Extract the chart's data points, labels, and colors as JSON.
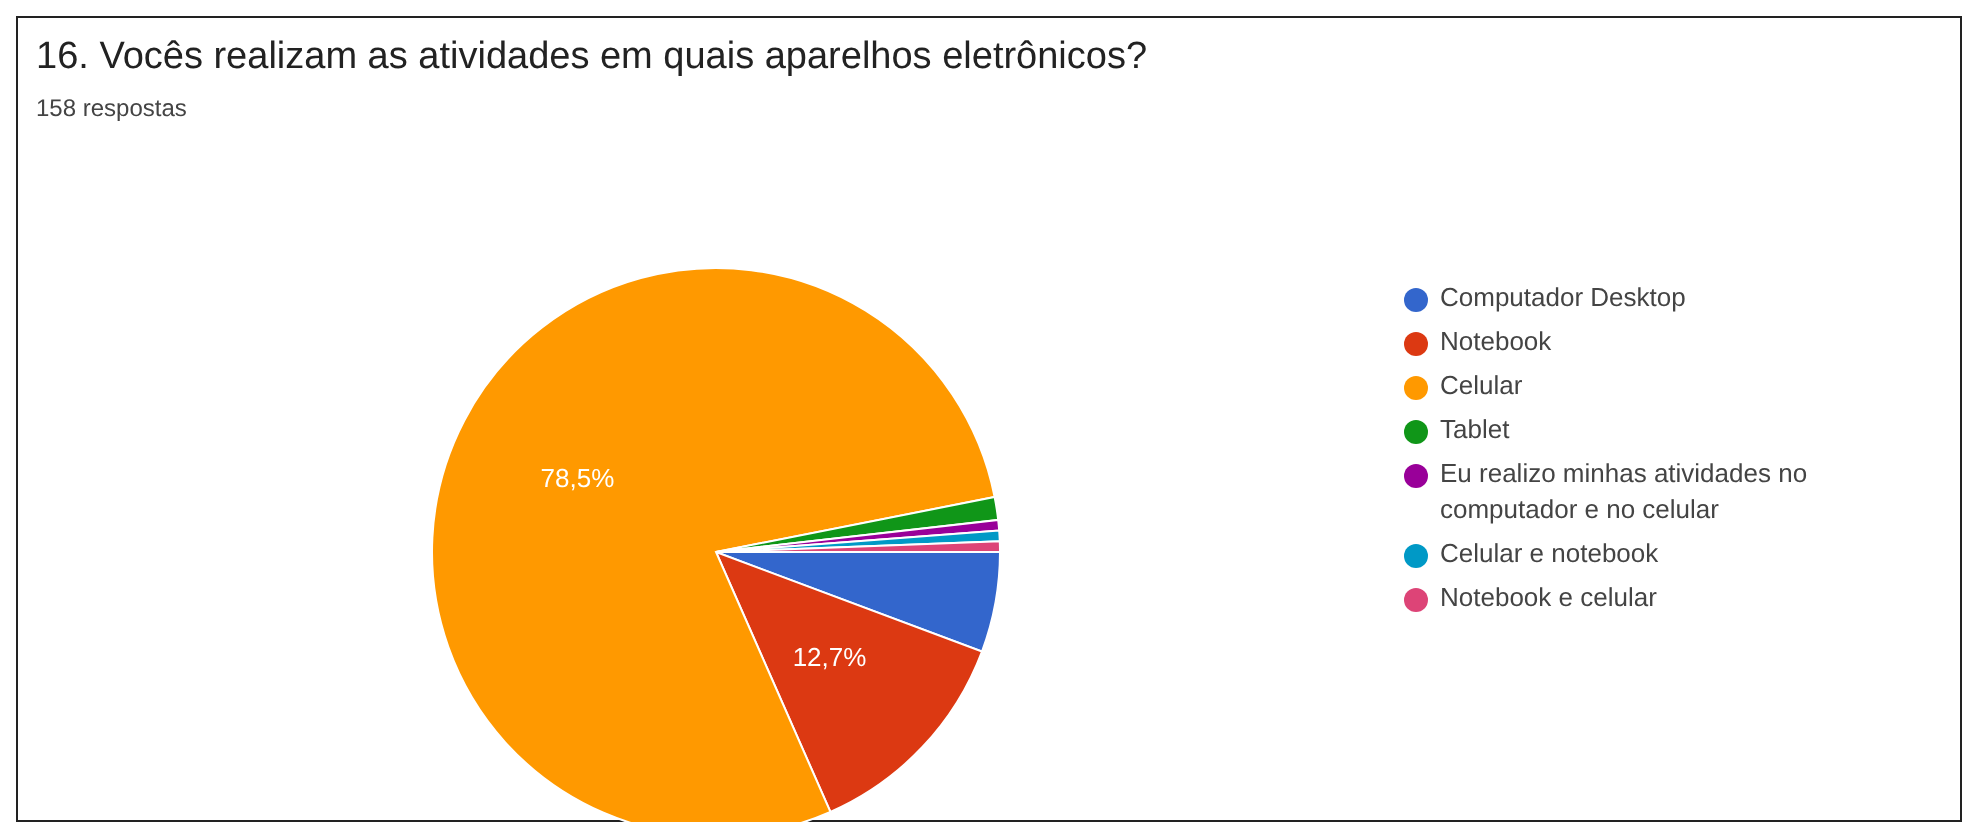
{
  "chart_data": {
    "type": "pie",
    "title": "16. Vocês realizam as atividades em quais aparelhos eletrônicos?",
    "subtitle": "158 respostas",
    "categories": [
      "Computador Desktop",
      "Notebook",
      "Celular",
      "Tablet",
      "Eu realizo minhas atividades no computador e no celular",
      "Celular e notebook",
      "Notebook e celular"
    ],
    "values": [
      5.7,
      12.7,
      78.5,
      1.3,
      0.6,
      0.6,
      0.6
    ],
    "colors": [
      "#3366cc",
      "#dc3912",
      "#ff9900",
      "#109618",
      "#990099",
      "#0099c6",
      "#dd4477"
    ],
    "value_labels": [
      null,
      "12,7%",
      "78,5%",
      null,
      null,
      null,
      null
    ],
    "legend": "right"
  }
}
